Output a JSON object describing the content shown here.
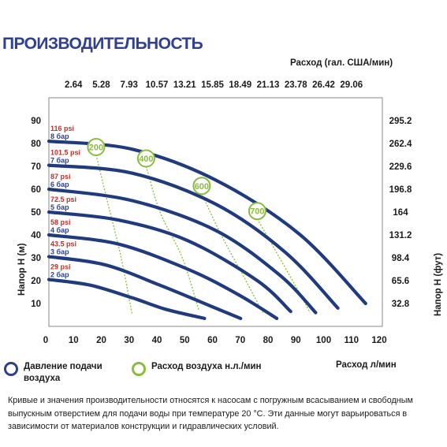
{
  "title": "ПРОИЗВОДИТЕЛЬНОСТЬ",
  "colors": {
    "curve": "#1f3b7d",
    "air": "#8bbd3d",
    "psi": "#c0312b",
    "bar": "#2c3f91",
    "title": "#2f3f92"
  },
  "legend": {
    "pressure": "Давление подачи воздуха",
    "air": "Расход воздуха н.л./мин",
    "pressure_icon": "blue-ring-icon",
    "air_icon": "green-ring-icon"
  },
  "note": "Кривые и значения производительности относятся к насосам с погружным всасыванием и свободным выпускным отверстием для подачи воды при температуре 20 °C. Эти данные могут варьироваться в зависимости от материалов конструкции и гидравлических условий.",
  "chart_data": {
    "type": "line",
    "title": "ПРОИЗВОДИТЕЛЬНОСТЬ",
    "xlabel": "Расход л/мин",
    "ylabel": "Напор H (м)",
    "x2label": "Расход (гал. США/мин)",
    "y2label": "Напор H (фут)",
    "xlim": [
      0,
      120
    ],
    "ylim": [
      0,
      100
    ],
    "x_ticks": [
      0,
      10,
      20,
      30,
      40,
      50,
      60,
      70,
      80,
      90,
      100,
      110,
      120
    ],
    "y_ticks": [
      10,
      20,
      30,
      40,
      50,
      60,
      70,
      80,
      90
    ],
    "x2_ticks": [
      "2.64",
      "5.28",
      "7.93",
      "10.57",
      "13.21",
      "15.85",
      "18.49",
      "21.13",
      "23.78",
      "26.42",
      "29.06"
    ],
    "y2_ticks": [
      "32.8",
      "65.6",
      "98.4",
      "131.2",
      "164",
      "196.8",
      "229.6",
      "262.4",
      "295.2"
    ],
    "grid": false,
    "legend": "bottom",
    "series": [
      {
        "psi": "29 psi",
        "bar": "2 бар",
        "points": [
          [
            0,
            20.5
          ],
          [
            15,
            18
          ],
          [
            30,
            12.5
          ],
          [
            42,
            7.5
          ],
          [
            56,
            3.5
          ]
        ]
      },
      {
        "psi": "43.5 psi",
        "bar": "3 бар",
        "points": [
          [
            0,
            30.5
          ],
          [
            20,
            27
          ],
          [
            40,
            18
          ],
          [
            58,
            9
          ],
          [
            69,
            3.5
          ]
        ]
      },
      {
        "psi": "58 psi",
        "bar": "4 бар",
        "points": [
          [
            0,
            40
          ],
          [
            25,
            36
          ],
          [
            50,
            25
          ],
          [
            68,
            14
          ],
          [
            82,
            3.5
          ]
        ]
      },
      {
        "psi": "72.5 psi",
        "bar": "5 бар",
        "points": [
          [
            0,
            50
          ],
          [
            25,
            46.5
          ],
          [
            50,
            37.5
          ],
          [
            75,
            20
          ],
          [
            87,
            6.5
          ]
        ]
      },
      {
        "psi": "87 psi",
        "bar": "6 бар",
        "points": [
          [
            0,
            60
          ],
          [
            30,
            55
          ],
          [
            60,
            42
          ],
          [
            83,
            22.5
          ],
          [
            96,
            6
          ]
        ]
      },
      {
        "psi": "101.5 psi",
        "bar": "7 бар",
        "points": [
          [
            0,
            70.5
          ],
          [
            30,
            67
          ],
          [
            60,
            53.5
          ],
          [
            85,
            32.5
          ],
          [
            104,
            8
          ]
        ]
      },
      {
        "psi": "116 psi",
        "bar": "8 бар",
        "points": [
          [
            0,
            81
          ],
          [
            30,
            77.5
          ],
          [
            60,
            64
          ],
          [
            90,
            40.5
          ],
          [
            114,
            10
          ]
        ]
      }
    ],
    "air_flow": [
      {
        "label": "200",
        "points": [
          [
            17,
            75
          ],
          [
            21,
            55
          ],
          [
            26,
            30
          ],
          [
            30,
            5
          ]
        ]
      },
      {
        "label": "400",
        "points": [
          [
            35,
            70
          ],
          [
            40,
            50
          ],
          [
            48,
            30
          ],
          [
            54,
            7
          ]
        ]
      },
      {
        "label": "600",
        "points": [
          [
            55,
            58
          ],
          [
            62,
            40
          ],
          [
            70,
            22
          ],
          [
            77,
            6
          ]
        ]
      },
      {
        "label": "700",
        "points": [
          [
            75,
            47
          ],
          [
            83,
            30
          ],
          [
            90,
            15
          ],
          [
            94,
            6
          ]
        ]
      }
    ]
  }
}
